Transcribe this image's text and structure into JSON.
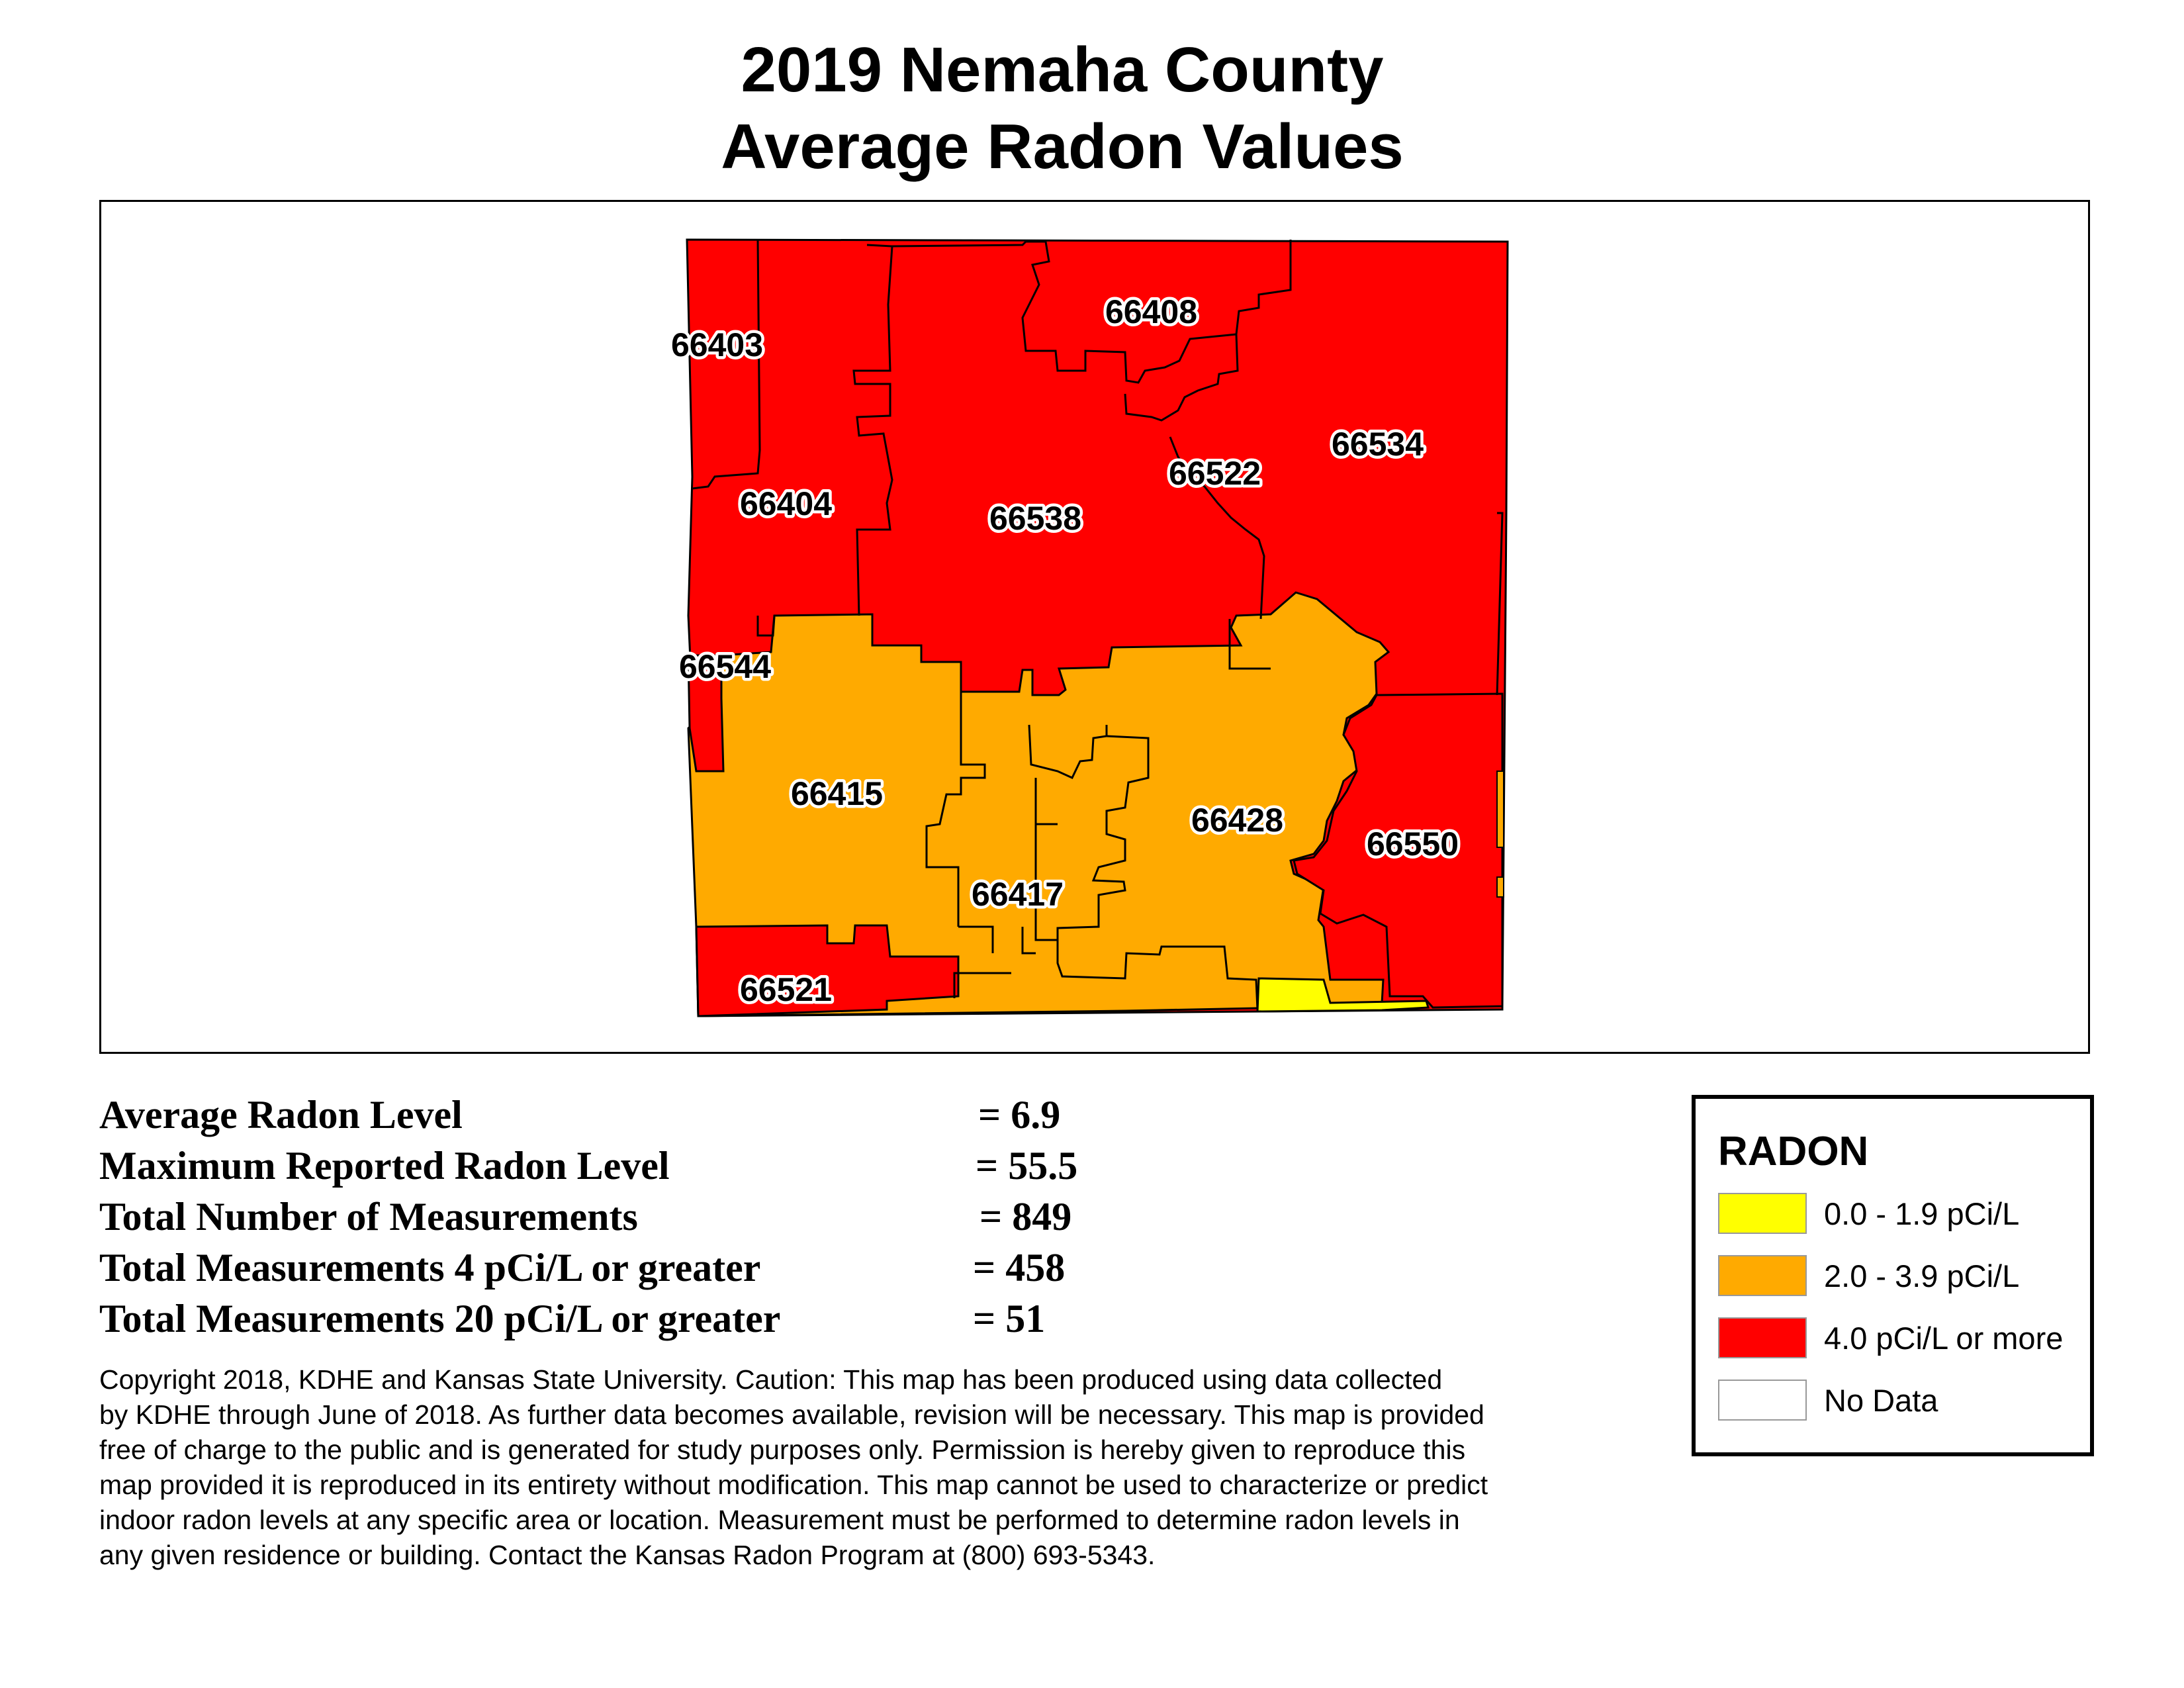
{
  "title": {
    "line1": "2019 Nemaha County",
    "line2": "Average Radon Values"
  },
  "map": {
    "zip_codes": [
      {
        "zip": "66403",
        "class": "4.0 pCi/L or more"
      },
      {
        "zip": "66404",
        "class": "4.0 pCi/L or more"
      },
      {
        "zip": "66408",
        "class": "4.0 pCi/L or more"
      },
      {
        "zip": "66538",
        "class": "4.0 pCi/L or more"
      },
      {
        "zip": "66522",
        "class": "4.0 pCi/L or more"
      },
      {
        "zip": "66534",
        "class": "4.0 pCi/L or more"
      },
      {
        "zip": "66544",
        "class": "4.0 pCi/L or more"
      },
      {
        "zip": "66415",
        "class": "2.0 - 3.9 pCi/L"
      },
      {
        "zip": "66428",
        "class": "2.0 - 3.9 pCi/L"
      },
      {
        "zip": "66417",
        "class": "2.0 - 3.9 pCi/L"
      },
      {
        "zip": "66550",
        "class": "4.0 pCi/L or more"
      },
      {
        "zip": "66521",
        "class": "4.0 pCi/L or more"
      }
    ]
  },
  "stats": [
    {
      "label": "Average Radon Level",
      "value": "= 6.9"
    },
    {
      "label": "Maximum Reported Radon Level",
      "value": "= 55.5"
    },
    {
      "label": "Total Number of Measurements",
      "value": "= 849"
    },
    {
      "label": "Total Measurements 4 pCi/L or greater",
      "value": "= 458"
    },
    {
      "label": "Total Measurements 20 pCi/L or greater",
      "value": "= 51"
    }
  ],
  "notice": [
    "Copyright 2018, KDHE and Kansas State University.  Caution: This map has been produced using data collected",
    "by KDHE through June of 2018.  As further data becomes available, revision will be necessary. This map is provided",
    "free of charge to the public and is generated for study purposes only.  Permission is hereby given to reproduce this",
    "map provided it is reproduced in its entirety without modification. This map cannot be used to characterize or predict",
    "indoor radon levels at any specific area or location. Measurement must be performed to determine radon levels in",
    "any given residence or building. Contact the Kansas Radon Program at (800) 693-5343."
  ],
  "legend": {
    "title": "RADON",
    "items": [
      {
        "label": "0.0 - 1.9 pCi/L",
        "color": "#ffff00"
      },
      {
        "label": "2.0 - 3.9 pCi/L",
        "color": "#ffaa00"
      },
      {
        "label": "4.0 pCi/L or more",
        "color": "#ff0000"
      },
      {
        "label": "No Data",
        "color": "#ffffff"
      }
    ]
  }
}
